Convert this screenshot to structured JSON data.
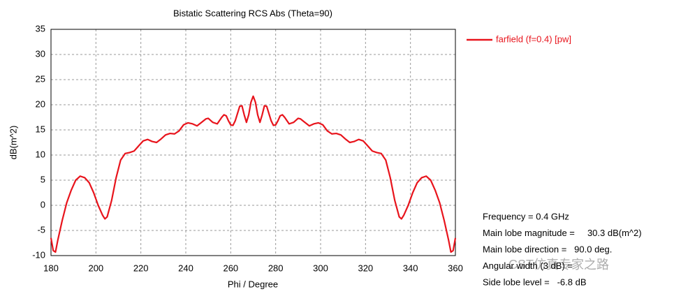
{
  "chart_data": {
    "type": "line",
    "title": "Bistatic Scattering RCS Abs (Theta=90)",
    "x_label": "Phi / Degree",
    "y_label": "dB(m^2)",
    "x": [
      180,
      181,
      182,
      183,
      185,
      187,
      189,
      191,
      193,
      195,
      197,
      199,
      201,
      203,
      204,
      205,
      207,
      209,
      211,
      213,
      215,
      217,
      219,
      221,
      223,
      225,
      227,
      229,
      231,
      233,
      235,
      237,
      239,
      241,
      243,
      245,
      247,
      249,
      250,
      252,
      254,
      256,
      257,
      258,
      259,
      260,
      261,
      262,
      264,
      265,
      266,
      267,
      268,
      269,
      270,
      271,
      272,
      273,
      274,
      275,
      276,
      278,
      279,
      280,
      281,
      282,
      283,
      284,
      286,
      288,
      290,
      291,
      293,
      295,
      297,
      299,
      301,
      303,
      305,
      307,
      309,
      311,
      313,
      315,
      317,
      319,
      321,
      323,
      325,
      327,
      329,
      331,
      333,
      335,
      336,
      337,
      339,
      341,
      343,
      345,
      347,
      349,
      351,
      353,
      355,
      357,
      358,
      359,
      360
    ],
    "series": [
      {
        "name": "farfield (f=0.4) [pw]",
        "color": "#e8141c",
        "values": [
          -6.5,
          -9,
          -9.3,
          -7,
          -3,
          0.5,
          3,
          5,
          5.8,
          5.5,
          4.5,
          2.5,
          0,
          -2,
          -2.7,
          -2.3,
          1,
          5.5,
          9,
          10.3,
          10.5,
          10.8,
          11.8,
          12.8,
          13.1,
          12.7,
          12.5,
          13.2,
          14,
          14.3,
          14.2,
          14.8,
          16,
          16.4,
          16.2,
          15.8,
          16.5,
          17.2,
          17.3,
          16.5,
          16.2,
          17.5,
          18,
          17.8,
          16.8,
          16,
          15.9,
          16.8,
          19.7,
          19.8,
          18,
          16.5,
          18,
          20.5,
          21.7,
          20.5,
          18,
          16.5,
          18,
          19.8,
          19.7,
          16.8,
          15.9,
          16,
          16.8,
          17.8,
          18,
          17.5,
          16.2,
          16.5,
          17.3,
          17.2,
          16.5,
          15.8,
          16.2,
          16.4,
          16,
          14.8,
          14.2,
          14.3,
          14,
          13.2,
          12.5,
          12.7,
          13.1,
          12.8,
          11.8,
          10.8,
          10.5,
          10.3,
          9,
          5.5,
          1,
          -2.3,
          -2.7,
          -2,
          0,
          2.5,
          4.5,
          5.5,
          5.8,
          5,
          3,
          0.5,
          -3,
          -7,
          -9.3,
          -9,
          -6.5
        ]
      }
    ],
    "xlim": [
      180,
      360
    ],
    "xticks": [
      180,
      200,
      220,
      240,
      260,
      280,
      300,
      320,
      340,
      360
    ],
    "ylim": [
      -10,
      35
    ],
    "yticks": [
      -10,
      -5,
      0,
      5,
      10,
      15,
      20,
      25,
      30,
      35
    ],
    "grid": true,
    "legend": "top-right",
    "annotations": [
      "Frequency = 0.4 GHz",
      "Main lobe magnitude =     30.3 dB(m^2)",
      "Main lobe direction =   90.0 deg.",
      "Angular width (3 dB) =",
      "Side lobe level =   -6.8 dB"
    ],
    "watermark": "CST仿真专家之路"
  }
}
